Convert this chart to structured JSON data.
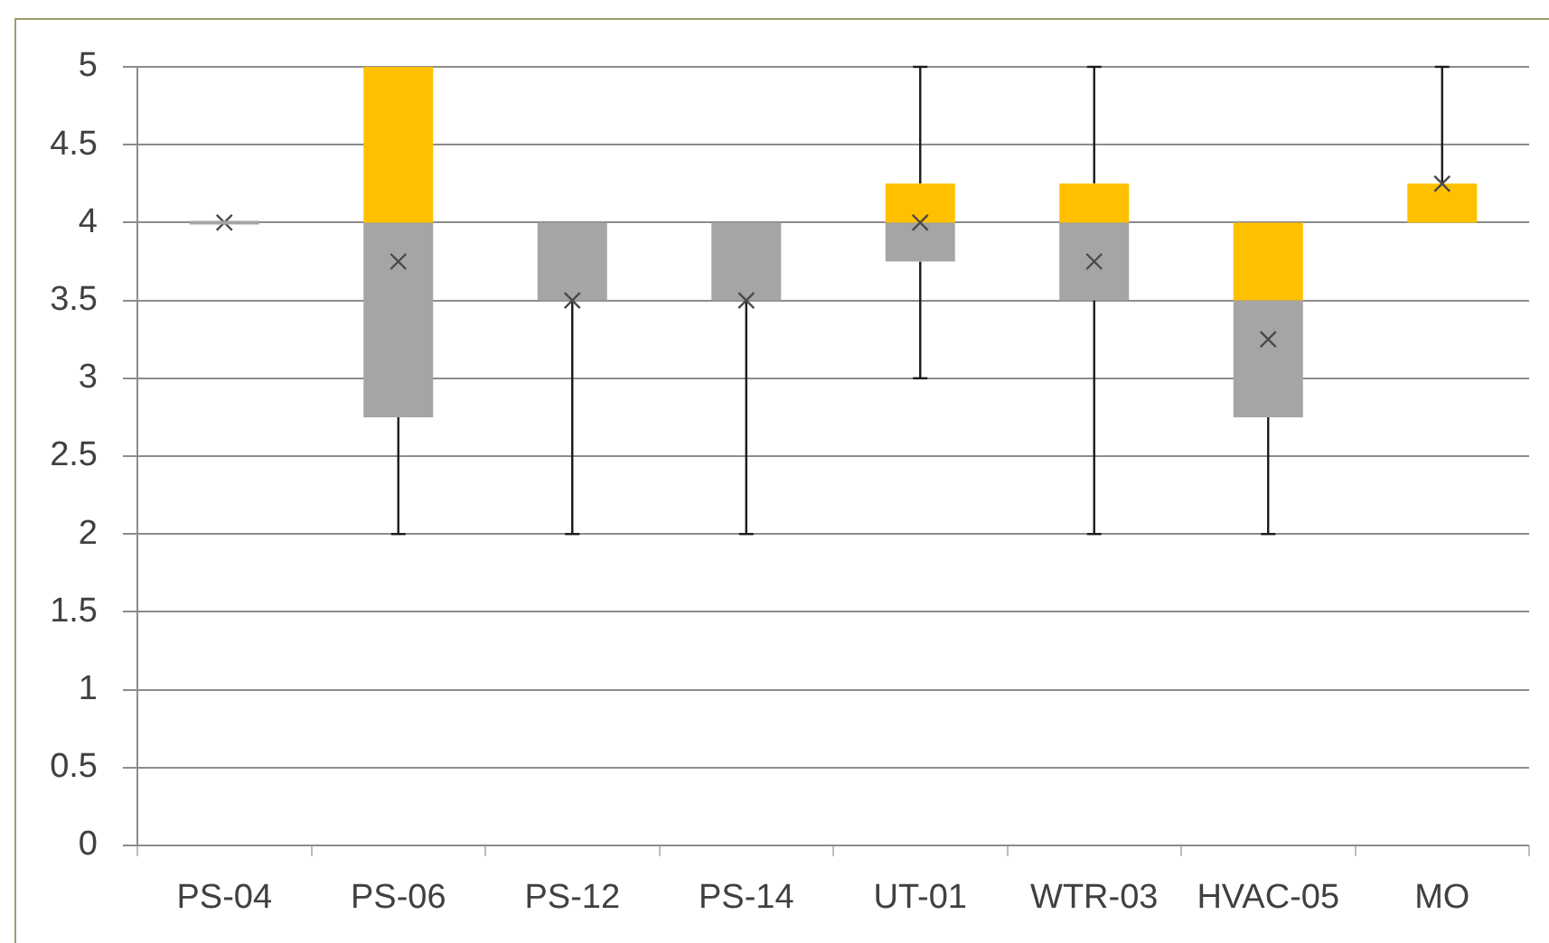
{
  "chart_data": {
    "type": "box",
    "categories": [
      "PS-04",
      "PS-06",
      "PS-12",
      "PS-14",
      "UT-01",
      "WTR-03",
      "HVAC-05",
      "MO"
    ],
    "series": [
      {
        "color": "#ffc000",
        "colors": [
          "#a5a5a5",
          "#a5a5a5",
          "#a5a5a5",
          "#a5a5a5",
          "#a5a5a5",
          "#a5a5a5",
          "#a5a5a5",
          "#ffc000"
        ],
        "boxes": [
          {
            "low": 4,
            "q1": 4,
            "median": 4,
            "q3": 4,
            "high": 4,
            "mean": 4
          },
          {
            "low": 2,
            "q1": 2.75,
            "median": 4,
            "q3": 5,
            "high": 5,
            "mean": 3.75
          },
          {
            "low": 2,
            "q1": 3.5,
            "median": 4,
            "q3": 4,
            "high": 4,
            "mean": 3.5
          },
          {
            "low": 2,
            "q1": 3.5,
            "median": 4,
            "q3": 4,
            "high": 4,
            "mean": 3.5
          },
          {
            "low": 3,
            "q1": 3.75,
            "median": 4,
            "q3": 4.25,
            "high": 5,
            "mean": 4
          },
          {
            "low": 2,
            "q1": 3.5,
            "median": 4,
            "q3": 4.25,
            "high": 5,
            "mean": 3.75
          },
          {
            "low": 2,
            "q1": 2.75,
            "median": 3.5,
            "q3": 4,
            "high": 4,
            "mean": 3.25
          },
          {
            "low": 4,
            "q1": 4,
            "median": 4,
            "q3": 4.25,
            "high": 5,
            "mean": 4.25
          }
        ]
      }
    ],
    "ylim": [
      0,
      5
    ],
    "yticks": [
      0,
      0.5,
      1,
      1.5,
      2,
      2.5,
      3,
      3.5,
      4,
      4.5,
      5
    ],
    "grid": "y",
    "marker": "cross"
  }
}
